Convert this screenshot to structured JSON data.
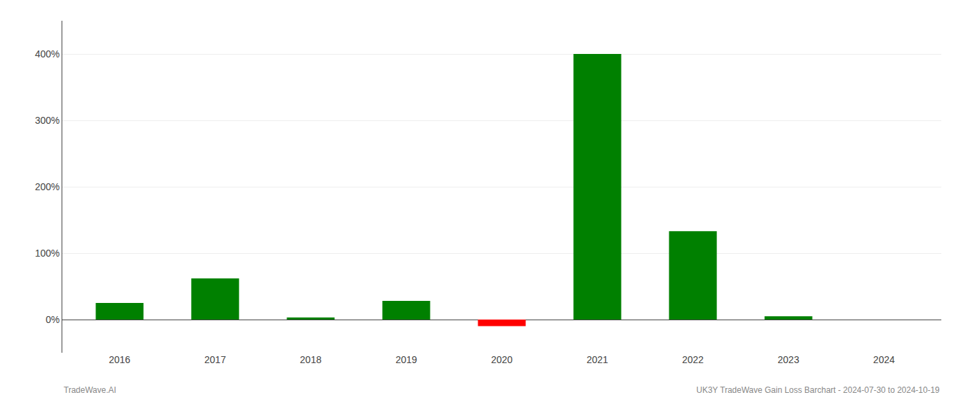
{
  "chart_data": {
    "type": "bar",
    "categories": [
      "2016",
      "2017",
      "2018",
      "2019",
      "2020",
      "2021",
      "2022",
      "2023",
      "2024"
    ],
    "values": [
      25.0,
      62.0,
      3.0,
      28.0,
      -10.0,
      400.0,
      133.0,
      5.0,
      0.0
    ],
    "colors": [
      "#008000",
      "#008000",
      "#008000",
      "#008000",
      "#ff0000",
      "#008000",
      "#008000",
      "#008000",
      "#008000"
    ],
    "ylim": [
      -50,
      450
    ],
    "yticks": [
      {
        "value": 0,
        "label": "0%"
      },
      {
        "value": 100,
        "label": "100%"
      },
      {
        "value": 200,
        "label": "200%"
      },
      {
        "value": 300,
        "label": "300%"
      },
      {
        "value": 400,
        "label": "400%"
      }
    ],
    "grid": true,
    "annotations": [
      "TradeWave.AI",
      "UK3Y TradeWave Gain Loss Barchart - 2024-07-30 to 2024-10-19"
    ]
  }
}
